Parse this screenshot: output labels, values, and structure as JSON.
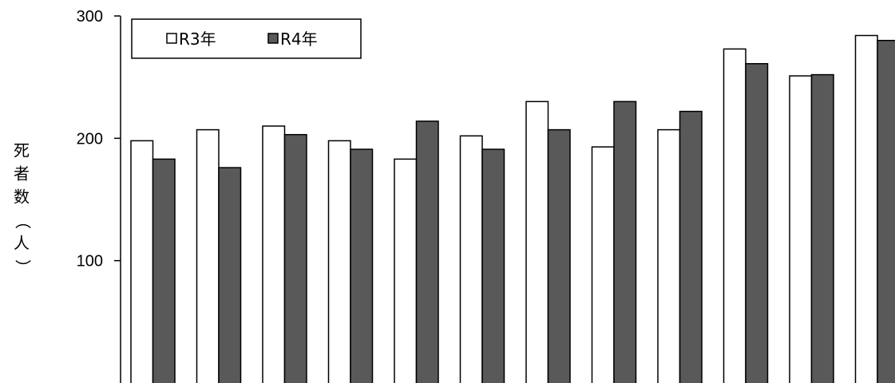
{
  "chart_data": {
    "type": "bar",
    "title": "",
    "xlabel": "",
    "ylabel": "死者数（人）",
    "ylim": [
      0,
      300
    ],
    "yticks": [
      100,
      200,
      300
    ],
    "categories": [
      "",
      "",
      "",
      "",
      "",
      "",
      "",
      "",
      "",
      "",
      "",
      ""
    ],
    "series": [
      {
        "name": "R3年",
        "color": "#ffffff",
        "values": [
          198,
          207,
          210,
          198,
          183,
          202,
          230,
          193,
          207,
          273,
          251,
          284
        ]
      },
      {
        "name": "R4年",
        "color": "#595959",
        "values": [
          183,
          176,
          203,
          191,
          214,
          191,
          207,
          230,
          222,
          261,
          252,
          280
        ]
      }
    ],
    "legend": "top-left",
    "grid": false
  }
}
